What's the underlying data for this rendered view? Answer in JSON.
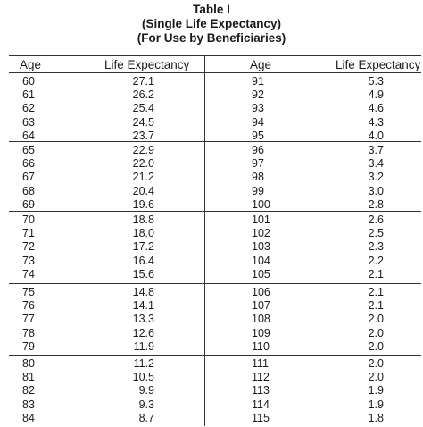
{
  "title": [
    "Table I",
    "(Single Life Expectancy)",
    "(For Use by Beneficiaries)"
  ],
  "columns": [
    "Age",
    "Life Expectancy",
    "Age",
    "Life Expectancy"
  ],
  "groups": [
    [
      [
        "60",
        "27.1",
        "91",
        "5.3"
      ],
      [
        "61",
        "26.2",
        "92",
        "4.9"
      ],
      [
        "62",
        "25.4",
        "93",
        "4.6"
      ],
      [
        "63",
        "24.5",
        "94",
        "4.3"
      ],
      [
        "64",
        "23.7",
        "95",
        "4.0"
      ]
    ],
    [
      [
        "65",
        "22.9",
        "96",
        "3.7"
      ],
      [
        "66",
        "22.0",
        "97",
        "3.4"
      ],
      [
        "67",
        "21.2",
        "98",
        "3.2"
      ],
      [
        "68",
        "20.4",
        "99",
        "3.0"
      ],
      [
        "69",
        "19.6",
        "100",
        "2.8"
      ]
    ],
    [
      [
        "70",
        "18.8",
        "101",
        "2.6"
      ],
      [
        "71",
        "18.0",
        "102",
        "2.5"
      ],
      [
        "72",
        "17.2",
        "103",
        "2.3"
      ],
      [
        "73",
        "16.4",
        "104",
        "2.2"
      ],
      [
        "74",
        "15.6",
        "105",
        "2.1"
      ]
    ],
    [
      [
        "75",
        "14.8",
        "106",
        "2.1"
      ],
      [
        "76",
        "14.1",
        "107",
        "2.1"
      ],
      [
        "77",
        "13.3",
        "108",
        "2.0"
      ],
      [
        "78",
        "12.6",
        "109",
        "2.0"
      ],
      [
        "79",
        "11.9",
        "110",
        "2.0"
      ]
    ],
    [
      [
        "80",
        "11.2",
        "111",
        "2.0"
      ],
      [
        "81",
        "10.5",
        "112",
        "2.0"
      ],
      [
        "82",
        "9.9",
        "113",
        "1.9"
      ],
      [
        "83",
        "9.3",
        "114",
        "1.9"
      ],
      [
        "84",
        "8.7",
        "115",
        "1.8"
      ]
    ]
  ]
}
